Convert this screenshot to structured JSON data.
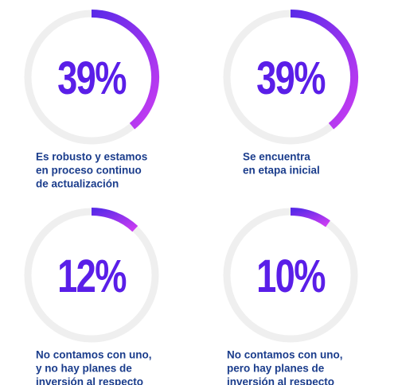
{
  "chart_data": [
    {
      "type": "gauge",
      "values": [
        39
      ],
      "value_labels": [
        "39%"
      ],
      "range": [
        0,
        100
      ],
      "caption": [
        "Es robusto y estamos",
        "en proceso continuo",
        "de actualización"
      ]
    },
    {
      "type": "gauge",
      "values": [
        39
      ],
      "value_labels": [
        "39%"
      ],
      "range": [
        0,
        100
      ],
      "caption": [
        "Se encuentra",
        "en etapa inicial"
      ]
    },
    {
      "type": "gauge",
      "values": [
        12
      ],
      "value_labels": [
        "12%"
      ],
      "range": [
        0,
        100
      ],
      "caption": [
        "No contamos con uno,",
        "y no hay planes de",
        "inversión al respecto"
      ]
    },
    {
      "type": "gauge",
      "values": [
        10
      ],
      "value_labels": [
        "10%"
      ],
      "range": [
        0,
        100
      ],
      "caption": [
        "No contamos con uno,",
        "pero hay planes de",
        "inversión al respecto"
      ]
    }
  ]
}
